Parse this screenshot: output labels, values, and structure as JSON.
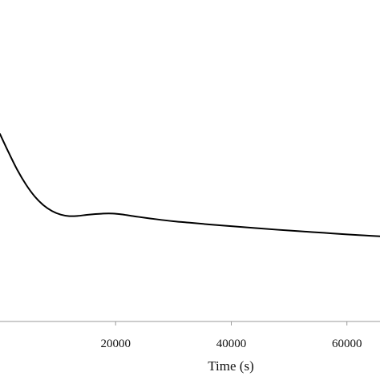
{
  "chart_data": {
    "type": "line",
    "title": "",
    "xlabel": "Time (s)",
    "ylabel": "",
    "xlim": [
      0,
      66000
    ],
    "ylim": [
      0,
      1
    ],
    "x_ticks": [
      20000,
      40000,
      60000
    ],
    "x_tick_labels": [
      "20000",
      "40000",
      "60000"
    ],
    "grid": false,
    "legend": "none",
    "line_color": "#000000",
    "axis_color": "#999999",
    "series": [
      {
        "x": [
          0,
          1500,
          3000,
          4500,
          6000,
          7500,
          9000,
          10500,
          12000,
          13500,
          15000,
          16500,
          18000,
          19500,
          21000,
          22500,
          24000,
          27000,
          30000,
          33000,
          36000,
          40000,
          44000,
          48000,
          52000,
          56000,
          60000,
          63000,
          66000
        ],
        "y": [
          0.79,
          0.718,
          0.65,
          0.593,
          0.547,
          0.513,
          0.49,
          0.476,
          0.47,
          0.471,
          0.475,
          0.478,
          0.48,
          0.48,
          0.477,
          0.472,
          0.467,
          0.458,
          0.45,
          0.444,
          0.438,
          0.431,
          0.424,
          0.417,
          0.411,
          0.405,
          0.399,
          0.395,
          0.391
        ]
      }
    ]
  }
}
